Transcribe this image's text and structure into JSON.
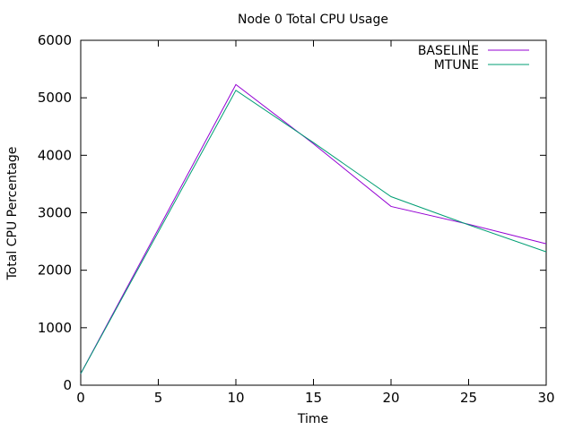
{
  "chart_data": {
    "type": "line",
    "title": "Node 0 Total CPU Usage",
    "xlabel": "Time",
    "ylabel": "Total CPU Percentage",
    "xlim": [
      0,
      30
    ],
    "ylim": [
      0,
      6000
    ],
    "xticks": [
      0,
      5,
      10,
      15,
      20,
      25,
      30
    ],
    "yticks": [
      0,
      1000,
      2000,
      3000,
      4000,
      5000,
      6000
    ],
    "grid": false,
    "legend_position": "top-right",
    "series": [
      {
        "name": "BASELINE",
        "color": "#9400d3",
        "x": [
          0,
          10,
          15,
          20,
          25,
          30
        ],
        "y": [
          200,
          5230,
          4200,
          3110,
          2800,
          2460
        ]
      },
      {
        "name": "MTUNE",
        "color": "#009e73",
        "x": [
          0,
          10,
          15,
          20,
          25,
          30
        ],
        "y": [
          200,
          5130,
          4220,
          3280,
          2790,
          2320
        ]
      }
    ]
  }
}
